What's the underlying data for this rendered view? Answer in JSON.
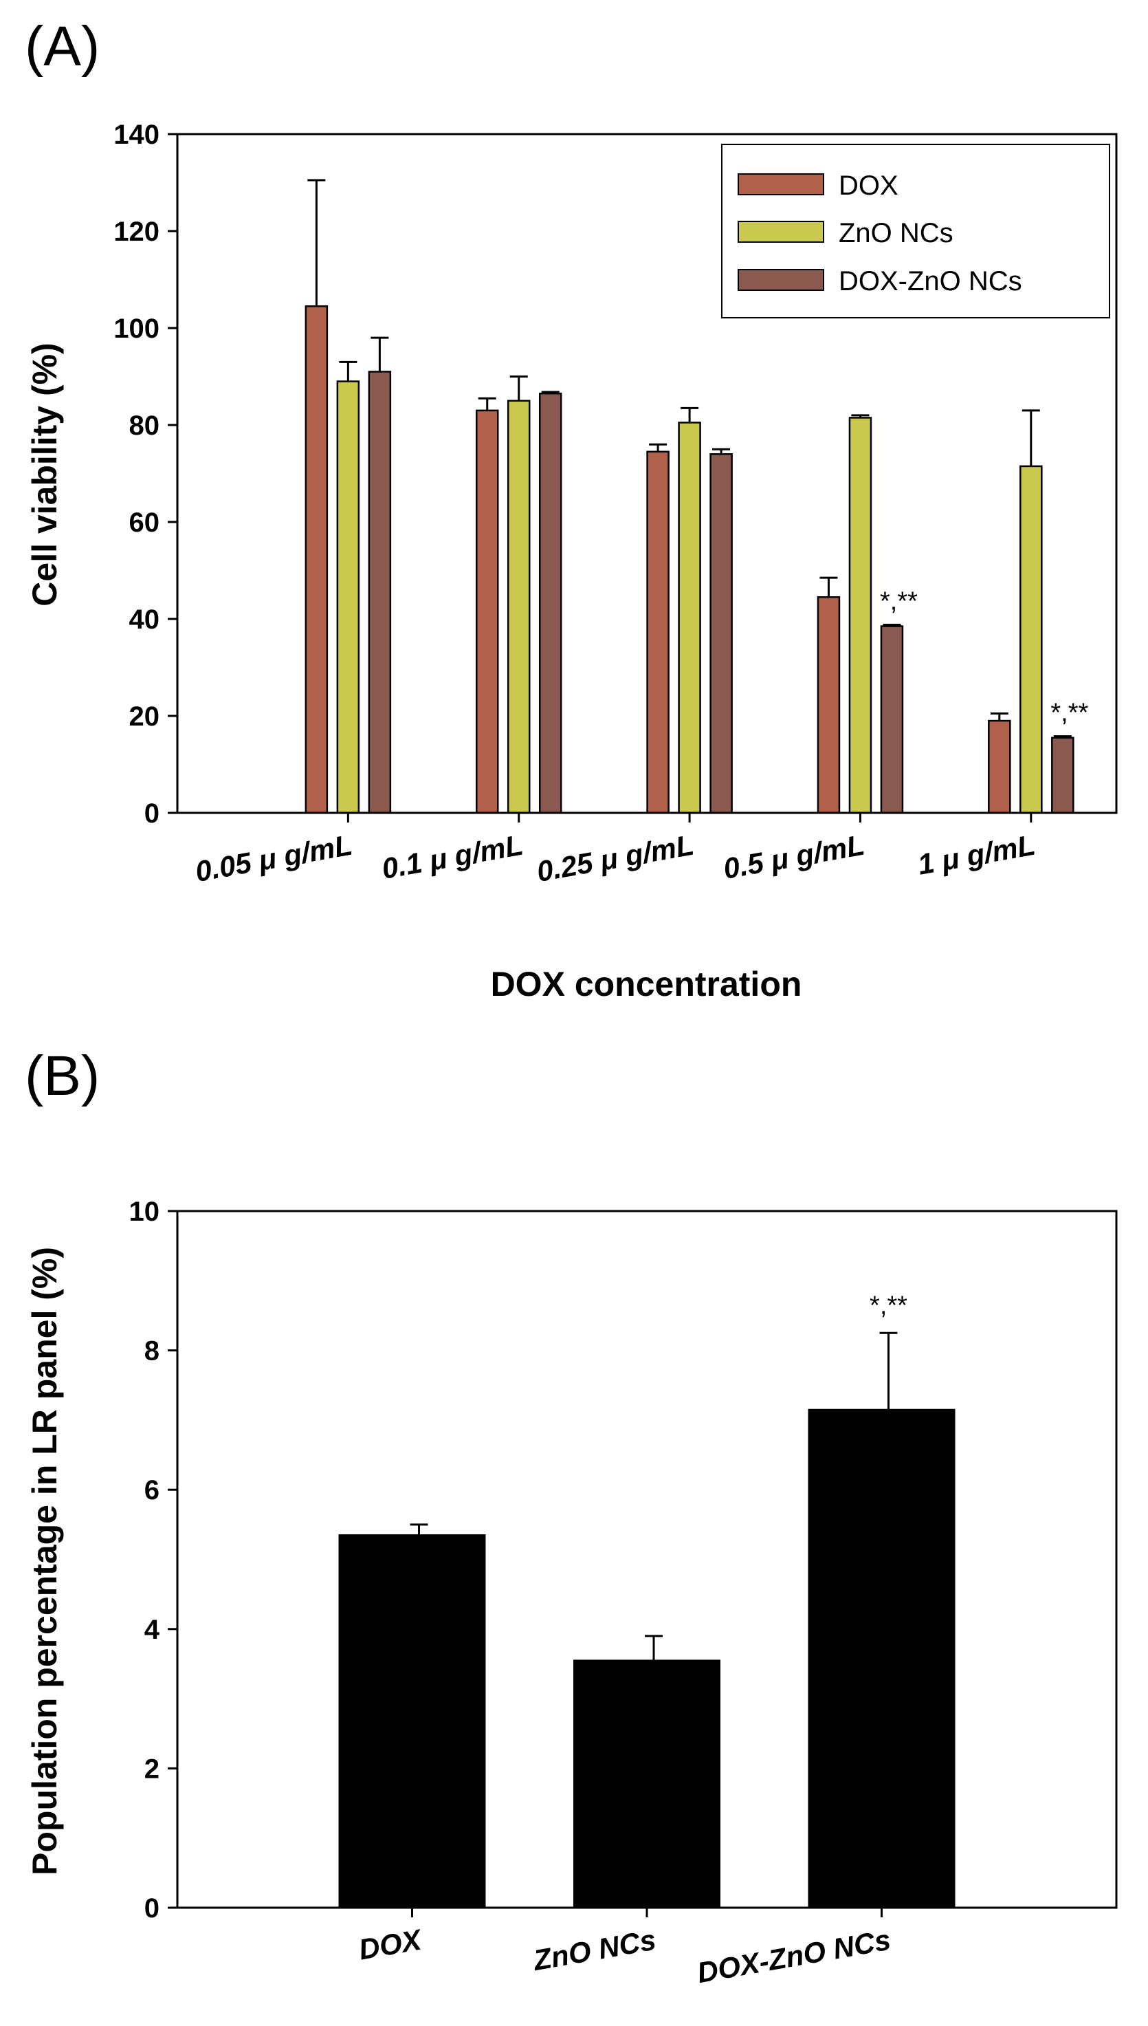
{
  "chart_data": [
    {
      "panel": "(A)",
      "type": "bar",
      "xlabel": "DOX concentration",
      "ylabel": "Cell viability (%)",
      "ylim": [
        0,
        140
      ],
      "yticks": [
        "0",
        "20",
        "40",
        "60",
        "80",
        "100",
        "120",
        "140"
      ],
      "categories": [
        "0.05 μ g/mL",
        "0.1 μ g/mL",
        "0.25 μ g/mL",
        "0.5 μ g/mL",
        "1 μ g/mL"
      ],
      "legend_position": "top-right",
      "series": [
        {
          "name": "DOX",
          "color": "#b0604b",
          "values": [
            104.5,
            83,
            74.5,
            44.5,
            19
          ],
          "errors": [
            26,
            2.5,
            1.5,
            4,
            1.5
          ]
        },
        {
          "name": "ZnO NCs",
          "color": "#c9c94e",
          "values": [
            89,
            85,
            80.5,
            81.5,
            71.5
          ],
          "errors": [
            4,
            5,
            3,
            0.5,
            11.5
          ]
        },
        {
          "name": "DOX-ZnO NCs",
          "color": "#8a5a50",
          "values": [
            91,
            86.5,
            74,
            38.5,
            15.5
          ],
          "errors": [
            7,
            0.3,
            1,
            0.3,
            0.3
          ]
        }
      ],
      "annotations": [
        {
          "category": "0.5 μ g/mL",
          "series": "DOX-ZnO NCs",
          "text": "*,**"
        },
        {
          "category": "1 μ g/mL",
          "series": "DOX-ZnO NCs",
          "text": "*,**"
        }
      ]
    },
    {
      "panel": "(B)",
      "type": "bar",
      "xlabel": "",
      "ylabel": "Population percentage in LR panel (%)",
      "ylim": [
        0,
        10
      ],
      "yticks": [
        "0",
        "2",
        "4",
        "6",
        "8",
        "10"
      ],
      "categories": [
        "DOX",
        "ZnO NCs",
        "DOX-ZnO NCs"
      ],
      "color": "#000000",
      "values": [
        5.35,
        3.55,
        7.15
      ],
      "errors": [
        0.15,
        0.35,
        1.1
      ],
      "annotations": [
        {
          "category": "DOX-ZnO NCs",
          "text": "*,**"
        }
      ]
    }
  ]
}
